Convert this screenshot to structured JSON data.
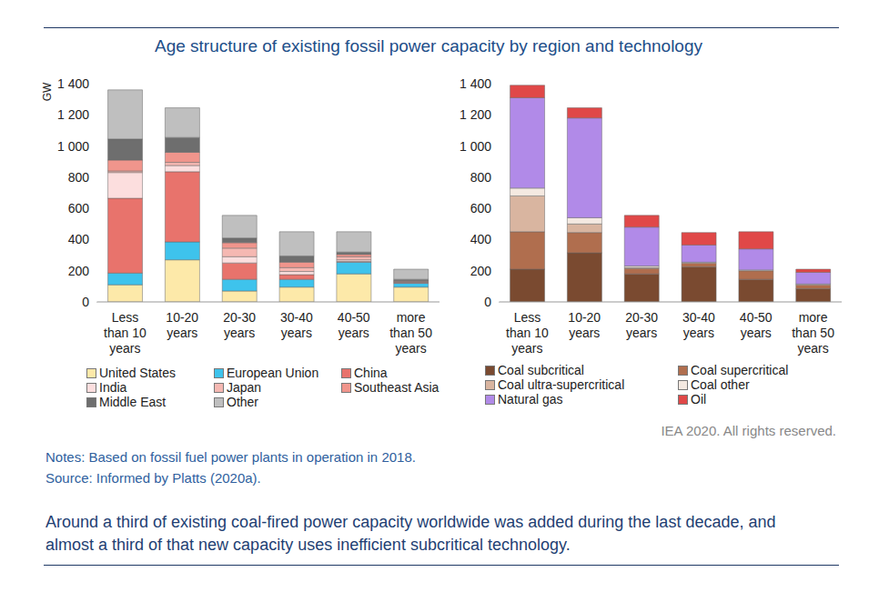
{
  "title": "Age structure of existing fossil power capacity by region and technology",
  "credit": "IEA 2020. All rights reserved.",
  "notes": [
    "Notes: Based on fossil fuel power plants in operation in 2018.",
    "Source: Informed by Platts (2020a)."
  ],
  "caption": "Around a third of existing coal-fired power capacity worldwide was added during the last decade, and almost a third of that new capacity uses inefficient subcritical technology.",
  "chart_data": [
    {
      "type": "bar",
      "stacked": true,
      "grid": false,
      "y_label": "GW",
      "categories": [
        "Less than 10 years",
        "10-20 years",
        "20-30 years",
        "30-40 years",
        "40-50 years",
        "more than 50 years"
      ],
      "ylim": [
        0,
        1400
      ],
      "yticks": [
        0,
        200,
        400,
        600,
        800,
        {
          "value": 1000,
          "label": "1 000"
        },
        {
          "value": 1200,
          "label": "1 200"
        },
        {
          "value": 1400,
          "label": "1 400"
        }
      ],
      "series": [
        {
          "name": "United States",
          "color": "#fde9a9",
          "values": [
            110,
            270,
            70,
            95,
            180,
            95
          ]
        },
        {
          "name": "European Union",
          "color": "#3ec3ec",
          "values": [
            75,
            115,
            75,
            50,
            75,
            25
          ]
        },
        {
          "name": "China",
          "color": "#e8736c",
          "values": [
            480,
            450,
            105,
            30,
            5,
            5
          ]
        },
        {
          "name": "India",
          "color": "#fcdede",
          "values": [
            165,
            40,
            40,
            20,
            10,
            3
          ]
        },
        {
          "name": "Japan",
          "color": "#f5b8b2",
          "values": [
            10,
            20,
            55,
            25,
            20,
            5
          ]
        },
        {
          "name": "Southeast Asia",
          "color": "#f0958c",
          "values": [
            70,
            65,
            35,
            35,
            15,
            2
          ]
        },
        {
          "name": "Middle East",
          "color": "#6e6e6e",
          "values": [
            135,
            95,
            30,
            40,
            15,
            10
          ]
        },
        {
          "name": "Other",
          "color": "#bfbfbf",
          "values": [
            315,
            190,
            145,
            155,
            130,
            65
          ]
        }
      ]
    },
    {
      "type": "bar",
      "stacked": true,
      "grid": false,
      "categories": [
        "Less than 10 years",
        "10-20 years",
        "20-30 years",
        "30-40 years",
        "40-50 years",
        "more than 50 years"
      ],
      "ylim": [
        0,
        1400
      ],
      "yticks": [
        0,
        200,
        400,
        600,
        800,
        {
          "value": 1000,
          "label": "1 000"
        },
        {
          "value": 1200,
          "label": "1 200"
        },
        {
          "value": 1400,
          "label": "1 400"
        }
      ],
      "series": [
        {
          "name": "Coal subcritical",
          "color": "#7a4a30",
          "values": [
            210,
            315,
            180,
            225,
            145,
            85
          ]
        },
        {
          "name": "Coal supercritical",
          "color": "#b06e4e",
          "values": [
            240,
            130,
            35,
            25,
            55,
            25
          ]
        },
        {
          "name": "Coal ultra-supercritical",
          "color": "#d9b5a0",
          "values": [
            230,
            55,
            5,
            0,
            0,
            0
          ]
        },
        {
          "name": "Coal other",
          "color": "#f4e9e1",
          "values": [
            50,
            40,
            10,
            5,
            5,
            5
          ]
        },
        {
          "name": "Natural gas",
          "color": "#b18ae8",
          "values": [
            580,
            640,
            250,
            110,
            135,
            75
          ]
        },
        {
          "name": "Oil",
          "color": "#e04848",
          "values": [
            80,
            65,
            75,
            80,
            110,
            20
          ]
        }
      ]
    }
  ]
}
